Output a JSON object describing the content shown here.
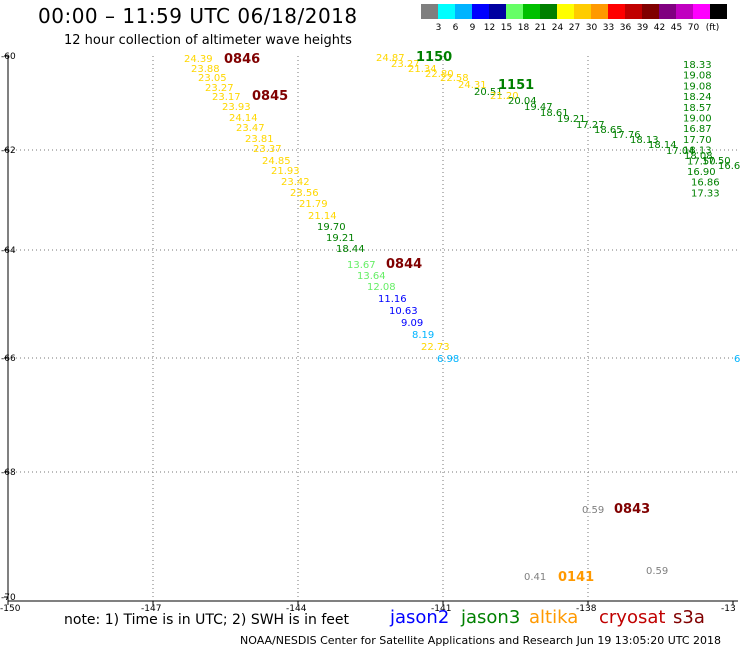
{
  "title": "00:00 – 11:59 UTC 06/18/2018",
  "subtitle": "12 hour collection of altimeter wave heights",
  "legend": {
    "unit": "(ft)",
    "colors": [
      "#7f7f7f",
      "#00ffff",
      "#00b4ff",
      "#0000ff",
      "#0000a0",
      "#66ff66",
      "#00c000",
      "#008000",
      "#ffff00",
      "#ffcc00",
      "#ff9900",
      "#ff0000",
      "#c00000",
      "#800000",
      "#800080",
      "#c000c0",
      "#ff00ff",
      "#000000"
    ],
    "labels": [
      "3",
      "6",
      "9",
      "12",
      "15",
      "18",
      "21",
      "24",
      "27",
      "30",
      "33",
      "36",
      "39",
      "42",
      "45",
      "70"
    ]
  },
  "axes": {
    "lat_labels": [
      "-60",
      "-62",
      "-64",
      "-66",
      "-68",
      "-70"
    ],
    "lon_labels": [
      "-150",
      "-147",
      "-144",
      "-141",
      "-138",
      "-13"
    ]
  },
  "track_labels": [
    "0846",
    "0845",
    "0844",
    "1150",
    "1151",
    "0843",
    "0141"
  ],
  "values": {
    "pass_0846": [
      "24.39",
      "23.88",
      "23.05",
      "23.27",
      "23.17",
      "23.93",
      "24.14",
      "23.47",
      "23.81",
      "23.37",
      "24.85",
      "21.93",
      "23.42",
      "23.56",
      "21.79",
      "21.14",
      "19.70",
      "19.21",
      "18.44",
      "13.67",
      "13.64",
      "12.08",
      "11.16",
      "10.63",
      "9.09",
      "8.19",
      "22.73",
      "6.98"
    ],
    "pass_1150": [
      "24.87",
      "23.27",
      "21.34",
      "22.80",
      "22.58",
      "24.31",
      "20.51",
      "21.20",
      "20.04",
      "19.47",
      "18.61",
      "19.21",
      "17.27",
      "18.65",
      "17.76",
      "18.13",
      "18.14",
      "17.04",
      "18.08",
      "17.50",
      "16.6"
    ],
    "east_column": [
      "18.33",
      "19.08",
      "19.08",
      "18.24",
      "18.57",
      "19.00",
      "16.87",
      "17.70",
      "18.13",
      "17.50",
      "16.90",
      "16.86",
      "17.33"
    ],
    "south": [
      "0.59",
      "0.41",
      "0.59"
    ],
    "edge": "6"
  },
  "note": "note: 1) Time is in UTC; 2) SWH is in feet",
  "satellites": [
    "jason2",
    "jason3",
    "altika",
    "cryosat",
    "s3a"
  ],
  "credit": "NOAA/NESDIS Center for Satellite Applications and Research   Jun 19 13:05:20 UTC 2018"
}
